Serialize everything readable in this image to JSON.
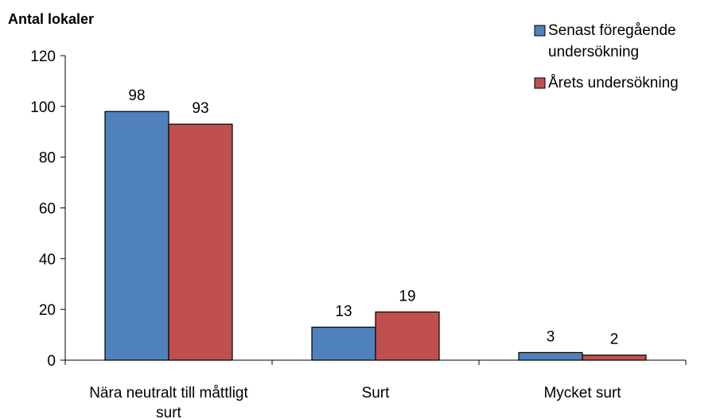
{
  "chart_data": {
    "type": "bar",
    "ylabel": "Antal lokaler",
    "ylim": [
      0,
      120
    ],
    "yticks": [
      0,
      20,
      40,
      60,
      80,
      100,
      120
    ],
    "categories": [
      [
        "Nära neutralt till måttligt",
        "surt"
      ],
      [
        "Surt"
      ],
      [
        "Mycket surt"
      ]
    ],
    "series": [
      {
        "name": [
          "Senast föregående",
          "undersökning"
        ],
        "color": "#4f81bd",
        "values": [
          98,
          13,
          3
        ]
      },
      {
        "name": [
          "Årets undersökning"
        ],
        "color": "#c0504d",
        "values": [
          93,
          19,
          2
        ]
      }
    ],
    "legend_position": "top-right",
    "grid": false
  }
}
